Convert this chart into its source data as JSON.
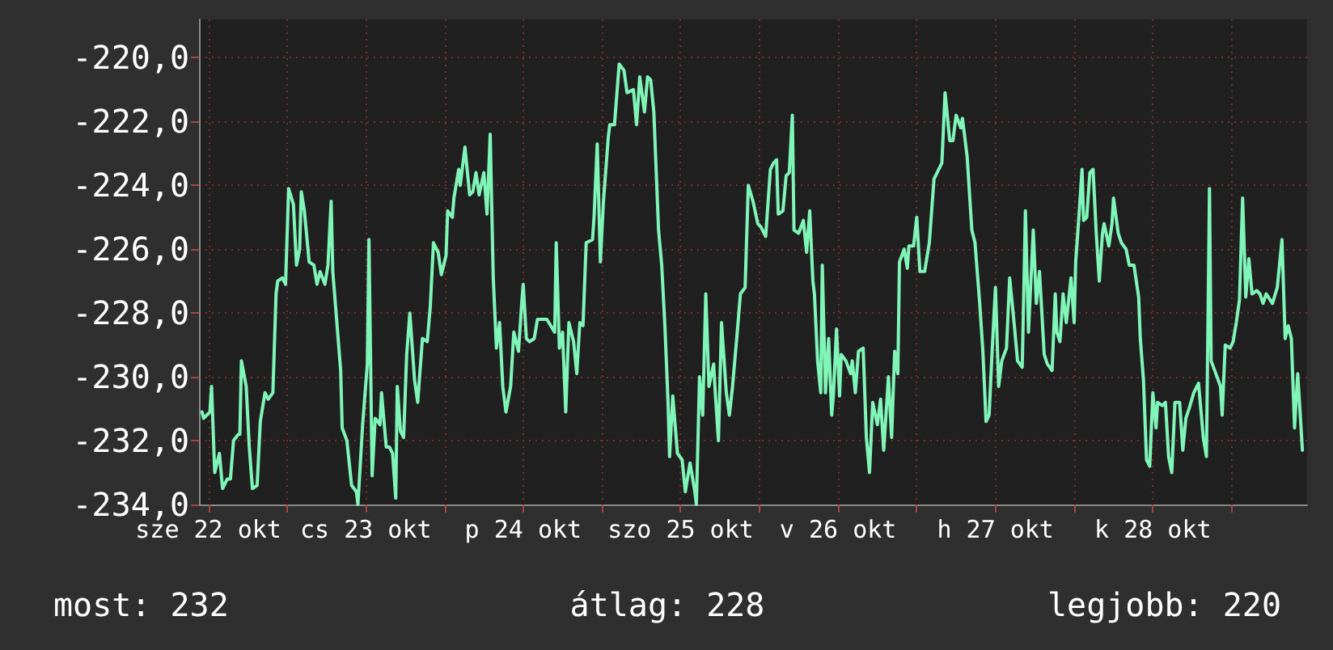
{
  "chart_data": {
    "type": "line",
    "color": "#7ff5b8",
    "grid": true,
    "marker": "none",
    "line_style": "solid",
    "xlim": [
      "--10-22T10:34",
      "--10-29T11:31"
    ],
    "xticks": [
      {
        "value": "--10-22T12:00",
        "label": "sze 22 okt"
      },
      {
        "value": "--10-23T00:00",
        "label": null
      },
      {
        "value": "--10-23T12:00",
        "label": "cs 23 okt"
      },
      {
        "value": "--10-24T00:00",
        "label": null
      },
      {
        "value": "--10-24T12:00",
        "label": "p 24 okt"
      },
      {
        "value": "--10-25T00:00",
        "label": null
      },
      {
        "value": "--10-25T12:00",
        "label": "szo 25 okt"
      },
      {
        "value": "--10-26T00:00",
        "label": null
      },
      {
        "value": "--10-26T12:00",
        "label": "v 26 okt"
      },
      {
        "value": "--10-27T00:00",
        "label": null
      },
      {
        "value": "--10-27T12:00",
        "label": "h 27 okt"
      },
      {
        "value": "--10-28T00:00",
        "label": null
      },
      {
        "value": "--10-28T12:00",
        "label": "k 28 okt"
      },
      {
        "value": "--10-29T00:00",
        "label": null
      }
    ],
    "ylim": [
      -234,
      -218.8
    ],
    "yticks": [
      {
        "value": -234,
        "label": "-234,0"
      },
      {
        "value": -232,
        "label": "-232,0"
      },
      {
        "value": -230,
        "label": "-230,0"
      },
      {
        "value": -228,
        "label": "-228,0"
      },
      {
        "value": -226,
        "label": "-226,0"
      },
      {
        "value": -224,
        "label": "-224,0"
      },
      {
        "value": -222,
        "label": "-222,0"
      },
      {
        "value": -220,
        "label": "-220,0"
      }
    ],
    "annotations": [
      "most: 232",
      "átlag: 228",
      "legjobb: 220"
    ],
    "x": [
      "--10-22T11:02",
      "--10-22T11:17",
      "--10-22T12:14",
      "--10-22T12:29",
      "--10-22T12:58",
      "--10-22T13:41",
      "--10-22T14:10",
      "--10-22T14:53",
      "--10-22T15:22",
      "--10-22T15:50",
      "--10-22T16:34",
      "--10-22T16:48",
      "--10-22T17:02",
      "--10-22T17:46",
      "--10-22T18:14",
      "--10-22T18:43",
      "--10-22T19:26",
      "--10-22T19:55",
      "--10-22T20:38",
      "--10-22T21:07",
      "--10-22T21:50",
      "--10-22T22:19",
      "--10-22T22:34",
      "--10-22T23:17",
      "--10-22T23:46",
      "--10-23T00:14",
      "--10-23T00:58",
      "--10-23T01:26",
      "--10-23T01:55",
      "--10-23T02:10",
      "--10-23T02:38",
      "--10-23T03:22",
      "--10-23T04:05",
      "--10-23T04:34",
      "--10-23T05:02",
      "--10-23T05:46",
      "--10-23T06:14",
      "--10-23T06:43",
      "--10-23T06:58",
      "--10-23T07:26",
      "--10-23T08:10",
      "--10-23T08:24",
      "--10-23T09:07",
      "--10-23T09:50",
      "--10-23T10:34",
      "--10-23T10:48",
      "--10-23T11:31",
      "--10-23T12:14",
      "--10-23T12:29",
      "--10-23T12:58",
      "--10-23T13:26",
      "--10-23T14:10",
      "--10-23T14:24",
      "--10-23T15:07",
      "--10-23T15:36",
      "--10-23T16:05",
      "--10-23T16:34",
      "--10-23T16:48",
      "--10-23T17:17",
      "--10-23T17:46",
      "--10-23T18:14",
      "--10-23T18:43",
      "--10-23T19:26",
      "--10-23T19:55",
      "--10-23T20:38",
      "--10-23T21:22",
      "--10-23T21:50",
      "--10-23T22:19",
      "--10-23T23:02",
      "--10-23T23:31",
      "--10-24T00:14",
      "--10-24T00:29",
      "--10-24T01:12",
      "--10-24T01:26",
      "--10-24T02:10",
      "--10-24T02:24",
      "--10-24T03:07",
      "--10-24T03:50",
      "--10-24T04:19",
      "--10-24T04:48",
      "--10-24T05:17",
      "--10-24T06:00",
      "--10-24T06:29",
      "--10-24T06:58",
      "--10-24T07:26",
      "--10-24T07:55",
      "--10-24T08:24",
      "--10-24T08:53",
      "--10-24T09:22",
      "--10-24T10:05",
      "--10-24T10:34",
      "--10-24T11:17",
      "--10-24T11:46",
      "--10-24T12:00",
      "--10-24T12:29",
      "--10-24T12:58",
      "--10-24T13:41",
      "--10-24T14:10",
      "--10-24T15:36",
      "--10-24T16:48",
      "--10-24T17:02",
      "--10-24T17:31",
      "--10-24T18:00",
      "--10-24T18:29",
      "--10-24T18:58",
      "--10-24T19:41",
      "--10-24T20:10",
      "--10-24T20:38",
      "--10-24T21:07",
      "--10-24T21:36",
      "--10-24T22:34",
      "--10-24T22:48",
      "--10-24T23:17",
      "--10-24T23:46",
      "--10-25T00:14",
      "--10-25T00:58",
      "--10-25T01:12",
      "--10-25T01:55",
      "--10-25T02:38",
      "--10-25T03:22",
      "--10-25T03:50",
      "--10-25T04:48",
      "--10-25T05:17",
      "--10-25T05:46",
      "--10-25T06:29",
      "--10-25T06:58",
      "--10-25T07:26",
      "--10-25T07:55",
      "--10-25T08:38",
      "--10-25T09:07",
      "--10-25T09:36",
      "--10-25T10:05",
      "--10-25T10:19",
      "--10-25T10:48",
      "--10-25T11:31",
      "--10-25T12:14",
      "--10-25T12:43",
      "--10-25T13:26",
      "--10-25T14:10",
      "--10-25T14:24",
      "--10-25T14:53",
      "--10-25T15:22",
      "--10-25T15:50",
      "--10-25T16:19",
      "--10-25T17:02",
      "--10-25T17:17",
      "--10-25T17:46",
      "--10-25T18:14",
      "--10-25T18:58",
      "--10-25T19:26",
      "--10-25T19:55",
      "--10-25T20:38",
      "--10-25T21:07",
      "--10-25T21:50",
      "--10-25T22:19",
      "--10-25T23:02",
      "--10-25T23:46",
      "--10-26T00:14",
      "--10-26T00:58",
      "--10-26T01:41",
      "--10-26T02:10",
      "--10-26T02:38",
      "--10-26T02:53",
      "--10-26T03:36",
      "--10-26T04:05",
      "--10-26T04:34",
      "--10-26T05:02",
      "--10-26T05:17",
      "--10-26T06:00",
      "--10-26T06:43",
      "--10-26T07:12",
      "--10-26T07:41",
      "--10-26T08:10",
      "--10-26T08:24",
      "--10-26T08:53",
      "--10-26T09:22",
      "--10-26T09:36",
      "--10-26T10:05",
      "--10-26T10:34",
      "--10-26T11:02",
      "--10-26T11:17",
      "--10-26T11:46",
      "--10-26T12:14",
      "--10-26T12:29",
      "--10-26T13:12",
      "--10-26T13:55",
      "--10-26T14:10",
      "--10-26T14:38",
      "--10-26T15:07",
      "--10-26T15:50",
      "--10-26T16:19",
      "--10-26T16:48",
      "--10-26T17:17",
      "--10-26T18:00",
      "--10-26T18:29",
      "--10-26T18:58",
      "--10-26T19:41",
      "--10-26T20:10",
      "--10-26T20:38",
      "--10-26T21:07",
      "--10-26T21:22",
      "--10-26T22:05",
      "--10-26T22:34",
      "--10-26T22:48",
      "--10-26T23:31",
      "--10-27T00:00",
      "--10-27T00:29",
      "--10-27T01:12",
      "--10-27T01:55",
      "--10-27T02:38",
      "--10-27T03:07",
      "--10-27T03:50",
      "--10-27T04:19",
      "--10-27T05:02",
      "--10-27T05:31",
      "--10-27T06:00",
      "--10-27T06:43",
      "--10-27T06:58",
      "--10-27T07:41",
      "--10-27T08:24",
      "--10-27T08:53",
      "--10-27T09:36",
      "--10-27T10:05",
      "--10-27T10:34",
      "--10-27T11:02",
      "--10-27T11:31",
      "--10-27T12:00",
      "--10-27T12:29",
      "--10-27T12:58",
      "--10-27T13:41",
      "--10-27T14:10",
      "--10-27T14:53",
      "--10-27T15:22",
      "--10-27T16:05",
      "--10-27T16:34",
      "--10-27T17:02",
      "--10-27T17:46",
      "--10-27T18:14",
      "--10-27T18:43",
      "--10-27T19:26",
      "--10-27T19:55",
      "--10-27T20:38",
      "--10-27T21:07",
      "--10-27T21:22",
      "--10-27T21:50",
      "--10-27T22:19",
      "--10-27T22:48",
      "--10-27T23:31",
      "--10-28T00:00",
      "--10-28T00:14",
      "--10-28T00:43",
      "--10-28T01:12",
      "--10-28T01:26",
      "--10-28T01:55",
      "--10-28T02:24",
      "--10-28T02:53",
      "--10-28T03:22",
      "--10-28T03:50",
      "--10-28T04:19",
      "--10-28T04:34",
      "--10-28T05:17",
      "--10-28T05:46",
      "--10-28T06:00",
      "--10-28T06:43",
      "--10-28T07:12",
      "--10-28T07:55",
      "--10-28T08:24",
      "--10-28T09:07",
      "--10-28T09:50",
      "--10-28T10:05",
      "--10-28T10:34",
      "--10-28T11:02",
      "--10-28T11:31",
      "--10-28T12:00",
      "--10-28T12:29",
      "--10-28T12:43",
      "--10-28T13:26",
      "--10-28T13:55",
      "--10-28T14:24",
      "--10-28T14:53",
      "--10-28T15:22",
      "--10-28T16:05",
      "--10-28T16:34",
      "--10-28T17:02",
      "--10-28T17:31",
      "--10-28T18:14",
      "--10-28T18:58",
      "--10-28T19:41",
      "--10-28T20:10",
      "--10-28T20:38",
      "--10-28T20:53",
      "--10-28T21:36",
      "--10-28T22:19",
      "--10-28T22:34",
      "--10-28T23:02",
      "--10-28T23:46",
      "--10-29T00:14",
      "--10-29T00:43",
      "--10-29T01:12",
      "--10-29T01:41",
      "--10-29T02:10",
      "--10-29T02:38",
      "--10-29T03:07",
      "--10-29T03:50",
      "--10-29T04:19",
      "--10-29T04:48",
      "--10-29T05:17",
      "--10-29T06:14",
      "--10-29T06:58",
      "--10-29T07:41",
      "--10-29T08:10",
      "--10-29T08:38",
      "--10-29T09:07",
      "--10-29T09:36",
      "--10-29T10:05",
      "--10-29T10:48"
    ],
    "values": [
      -231.1,
      -231.3,
      -231.1,
      -230.3,
      -233.0,
      -232.4,
      -233.5,
      -233.2,
      -233.2,
      -232.0,
      -231.8,
      -231.8,
      -229.5,
      -230.3,
      -232.2,
      -233.5,
      -233.4,
      -231.4,
      -230.5,
      -230.7,
      -230.5,
      -227.4,
      -227.0,
      -226.9,
      -227.1,
      -224.1,
      -224.6,
      -226.5,
      -226.0,
      -224.2,
      -224.8,
      -226.4,
      -226.5,
      -227.1,
      -226.7,
      -227.1,
      -226.5,
      -224.5,
      -226.7,
      -227.9,
      -229.8,
      -231.6,
      -232.0,
      -233.4,
      -233.6,
      -234.0,
      -231.5,
      -229.6,
      -225.7,
      -233.1,
      -231.3,
      -231.5,
      -230.5,
      -232.2,
      -232.2,
      -232.4,
      -233.8,
      -230.3,
      -231.7,
      -231.9,
      -229.3,
      -228.0,
      -230.1,
      -230.8,
      -228.8,
      -228.9,
      -227.8,
      -225.8,
      -226.1,
      -226.8,
      -226.2,
      -224.8,
      -225.0,
      -224.4,
      -223.5,
      -224.0,
      -222.8,
      -224.3,
      -224.2,
      -223.6,
      -224.3,
      -223.6,
      -224.9,
      -222.4,
      -226.9,
      -229.1,
      -228.3,
      -230.3,
      -231.1,
      -230.3,
      -228.6,
      -229.2,
      -227.7,
      -227.1,
      -228.8,
      -228.9,
      -228.8,
      -228.2,
      -228.2,
      -228.6,
      -225.8,
      -229.1,
      -228.6,
      -231.1,
      -228.3,
      -228.9,
      -229.9,
      -228.3,
      -228.4,
      -225.8,
      -225.7,
      -225.0,
      -222.7,
      -226.4,
      -224.5,
      -222.5,
      -222.1,
      -222.1,
      -220.2,
      -220.4,
      -221.1,
      -221.0,
      -222.1,
      -220.6,
      -221.7,
      -220.6,
      -220.7,
      -221.7,
      -225.4,
      -226.5,
      -228.4,
      -230.8,
      -232.5,
      -230.6,
      -232.4,
      -232.6,
      -233.6,
      -232.7,
      -233.6,
      -234.0,
      -230.0,
      -231.2,
      -227.4,
      -230.3,
      -229.6,
      -230.5,
      -232.0,
      -228.3,
      -230.5,
      -231.2,
      -230.3,
      -228.6,
      -227.4,
      -227.2,
      -224.0,
      -224.5,
      -225.2,
      -225.3,
      -225.6,
      -223.5,
      -223.3,
      -223.2,
      -224.9,
      -224.8,
      -223.7,
      -223.6,
      -221.8,
      -225.4,
      -225.5,
      -225.1,
      -226.1,
      -224.8,
      -227.0,
      -227.4,
      -229.5,
      -230.5,
      -226.5,
      -230.5,
      -228.8,
      -231.2,
      -230.6,
      -228.5,
      -230.6,
      -229.3,
      -229.5,
      -229.9,
      -229.5,
      -230.5,
      -229.2,
      -229.1,
      -231.9,
      -233.0,
      -230.8,
      -231.5,
      -230.7,
      -232.3,
      -230.0,
      -231.9,
      -229.2,
      -229.9,
      -226.4,
      -226.0,
      -226.6,
      -225.9,
      -225.9,
      -225.0,
      -226.7,
      -226.7,
      -225.8,
      -223.8,
      -223.6,
      -223.3,
      -221.1,
      -222.6,
      -222.6,
      -221.8,
      -222.2,
      -221.9,
      -223.1,
      -225.4,
      -225.8,
      -227.7,
      -229.2,
      -231.4,
      -231.2,
      -229.1,
      -227.2,
      -230.3,
      -229.5,
      -229.1,
      -226.9,
      -228.4,
      -229.5,
      -229.7,
      -224.8,
      -228.6,
      -225.4,
      -227.7,
      -226.7,
      -229.3,
      -229.6,
      -229.8,
      -227.4,
      -228.6,
      -228.9,
      -227.4,
      -228.3,
      -226.9,
      -228.3,
      -226.4,
      -225.0,
      -223.5,
      -225.1,
      -225.0,
      -223.6,
      -223.5,
      -225.5,
      -227.0,
      -225.5,
      -225.2,
      -225.9,
      -225.2,
      -224.4,
      -225.5,
      -225.8,
      -226.0,
      -226.5,
      -226.5,
      -227.5,
      -228.8,
      -230.1,
      -232.6,
      -232.8,
      -230.5,
      -231.6,
      -230.8,
      -230.9,
      -230.8,
      -232.5,
      -233.0,
      -230.8,
      -230.8,
      -232.3,
      -231.3,
      -231.0,
      -230.5,
      -230.2,
      -231.9,
      -232.5,
      -224.1,
      -229.5,
      -229.9,
      -230.3,
      -231.2,
      -229.0,
      -229.1,
      -228.9,
      -228.3,
      -227.6,
      -224.4,
      -227.5,
      -226.3,
      -227.4,
      -227.3,
      -227.4,
      -227.7,
      -227.4,
      -227.7,
      -227.2,
      -225.7,
      -228.8,
      -228.4,
      -228.8,
      -231.6,
      -229.9,
      -232.3
    ]
  }
}
